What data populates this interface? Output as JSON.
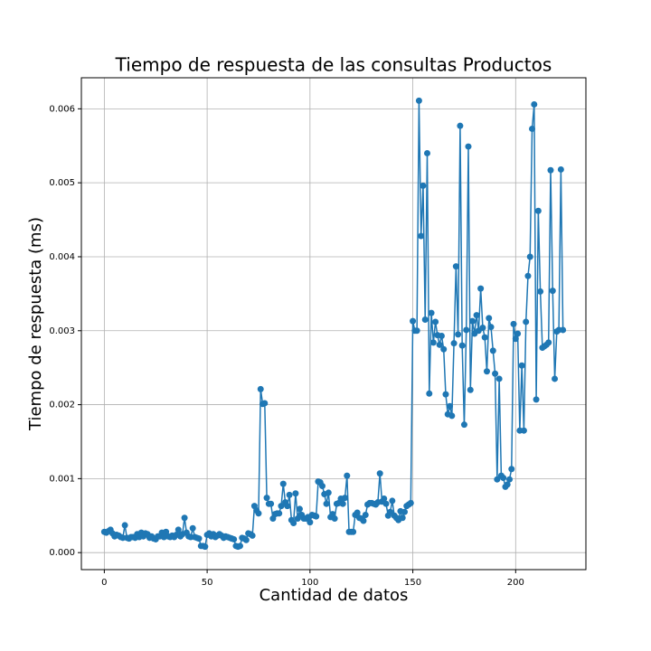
{
  "chart_data": {
    "type": "line",
    "title": "Tiempo de respuesta de las consultas Productos",
    "x_label": "Cantidad de datos",
    "y_label": "Tiempo de respuesta (ms)",
    "grid": true,
    "xlim": [
      -11.15,
      234.15
    ],
    "ylim": [
      -0.00023,
      0.00642
    ],
    "xticks": [
      0,
      50,
      100,
      150,
      200
    ],
    "yticks": [
      {
        "value": 0,
        "label": "0.000"
      },
      {
        "value": 0.001,
        "label": "0.001"
      },
      {
        "value": 0.002,
        "label": "0.002"
      },
      {
        "value": 0.003,
        "label": "0.003"
      },
      {
        "value": 0.004,
        "label": "0.004"
      },
      {
        "value": 0.005,
        "label": "0.005"
      },
      {
        "value": 0.006,
        "label": "0.006"
      }
    ],
    "x": [
      0,
      1,
      2,
      3,
      4,
      5,
      6,
      7,
      8,
      9,
      10,
      11,
      12,
      13,
      14,
      15,
      16,
      17,
      18,
      19,
      20,
      21,
      22,
      23,
      24,
      25,
      26,
      27,
      28,
      29,
      30,
      31,
      32,
      33,
      34,
      35,
      36,
      37,
      38,
      39,
      40,
      41,
      42,
      43,
      44,
      45,
      46,
      47,
      48,
      49,
      50,
      51,
      52,
      53,
      54,
      55,
      56,
      57,
      58,
      59,
      60,
      61,
      62,
      63,
      64,
      65,
      66,
      67,
      68,
      69,
      70,
      71,
      72,
      73,
      74,
      75,
      76,
      77,
      78,
      79,
      80,
      81,
      82,
      83,
      84,
      85,
      86,
      87,
      88,
      89,
      90,
      91,
      92,
      93,
      94,
      95,
      96,
      97,
      98,
      99,
      100,
      101,
      102,
      103,
      104,
      105,
      106,
      107,
      108,
      109,
      110,
      111,
      112,
      113,
      114,
      115,
      116,
      117,
      118,
      119,
      120,
      121,
      122,
      123,
      124,
      125,
      126,
      127,
      128,
      129,
      130,
      131,
      132,
      133,
      134,
      135,
      136,
      137,
      138,
      139,
      140,
      141,
      142,
      143,
      144,
      145,
      146,
      147,
      148,
      149,
      150,
      151,
      152,
      153,
      154,
      155,
      156,
      157,
      158,
      159,
      160,
      161,
      162,
      163,
      164,
      165,
      166,
      167,
      168,
      169,
      170,
      171,
      172,
      173,
      174,
      175,
      176,
      177,
      178,
      179,
      180,
      181,
      182,
      183,
      184,
      185,
      186,
      187,
      188,
      189,
      190,
      191,
      192,
      193,
      194,
      195,
      196,
      197,
      198,
      199,
      200,
      201,
      202,
      203,
      204,
      205,
      206,
      207,
      208,
      209,
      210,
      211,
      212,
      213,
      214,
      215,
      216,
      217,
      218,
      219,
      220,
      221,
      222,
      223
    ],
    "series": [
      {
        "color": "#1f77b4",
        "values": [
          0.00028,
          0.00027,
          0.00029,
          0.00031,
          0.00026,
          0.00022,
          0.00024,
          0.00023,
          0.00021,
          0.0002,
          0.00037,
          0.0002,
          0.00019,
          0.00021,
          0.00021,
          0.0002,
          0.00025,
          0.00021,
          0.00027,
          0.00022,
          0.00026,
          0.00025,
          0.0002,
          0.00022,
          0.00019,
          0.00018,
          0.00022,
          0.00022,
          0.00027,
          0.00021,
          0.00028,
          0.00022,
          0.00021,
          0.00023,
          0.00021,
          0.00024,
          0.00031,
          0.00022,
          0.00025,
          0.00047,
          0.00027,
          0.00022,
          0.00021,
          0.00033,
          0.00021,
          0.0002,
          0.00019,
          9e-05,
          9e-05,
          8e-05,
          0.00024,
          0.00026,
          0.00022,
          0.00025,
          0.00021,
          0.00023,
          0.00025,
          0.00023,
          0.0002,
          0.00022,
          0.00021,
          0.0002,
          0.00019,
          0.00018,
          9e-05,
          8e-05,
          9e-05,
          0.0002,
          0.00019,
          0.00017,
          0.00026,
          0.00025,
          0.00023,
          0.00063,
          0.00057,
          0.00053,
          0.00221,
          0.00201,
          0.00202,
          0.00074,
          0.00066,
          0.00066,
          0.00046,
          0.00052,
          0.00053,
          0.00053,
          0.00063,
          0.00093,
          0.00068,
          0.00063,
          0.00078,
          0.00044,
          0.0004,
          0.0008,
          0.00046,
          0.00059,
          0.00051,
          0.00046,
          0.00046,
          0.00048,
          0.00041,
          0.00051,
          0.0005,
          0.00049,
          0.00096,
          0.00095,
          0.0009,
          0.00079,
          0.00066,
          0.00081,
          0.00048,
          0.00052,
          0.00046,
          0.00066,
          0.00067,
          0.00073,
          0.00066,
          0.00074,
          0.00104,
          0.00028,
          0.00028,
          0.00028,
          0.00051,
          0.00054,
          0.00047,
          0.00046,
          0.00043,
          0.00051,
          0.00065,
          0.00067,
          0.00067,
          0.00066,
          0.00065,
          0.00068,
          0.00107,
          0.00069,
          0.00073,
          0.00066,
          0.0005,
          0.00055,
          0.0007,
          0.0005,
          0.00047,
          0.00044,
          0.00056,
          0.00047,
          0.00055,
          0.00063,
          0.00065,
          0.00067,
          0.00313,
          0.003,
          0.003,
          0.00611,
          0.00428,
          0.00496,
          0.00315,
          0.0054,
          0.00215,
          0.00324,
          0.00284,
          0.00312,
          0.00294,
          0.00281,
          0.00293,
          0.00275,
          0.00214,
          0.00187,
          0.00198,
          0.00185,
          0.00283,
          0.00387,
          0.00295,
          0.00577,
          0.0028,
          0.00173,
          0.00301,
          0.00549,
          0.0022,
          0.00313,
          0.00296,
          0.00321,
          0.003,
          0.00357,
          0.00304,
          0.00291,
          0.00245,
          0.00317,
          0.00305,
          0.00273,
          0.00242,
          0.00099,
          0.00235,
          0.00104,
          0.00101,
          0.00089,
          0.00092,
          0.00099,
          0.00113,
          0.00309,
          0.00289,
          0.00296,
          0.00165,
          0.00253,
          0.00165,
          0.00312,
          0.00374,
          0.004,
          0.00573,
          0.00606,
          0.00207,
          0.00462,
          0.00353,
          0.00277,
          0.00279,
          0.00281,
          0.00284,
          0.00517,
          0.00354,
          0.00235,
          0.00299,
          0.00301,
          0.00518,
          0.00301
        ]
      }
    ]
  }
}
